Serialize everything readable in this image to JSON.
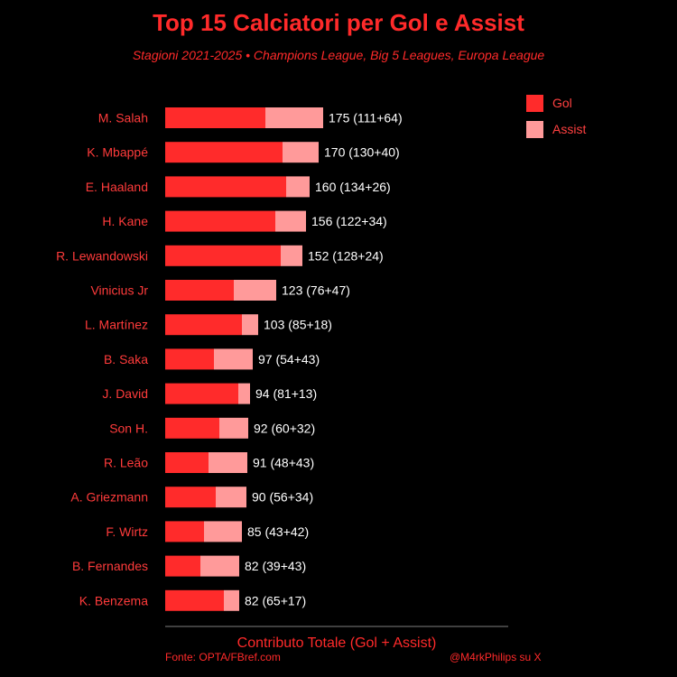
{
  "colors": {
    "gol": "#ff2b2b",
    "assist": "#ff9a9a",
    "label": "#ff3b3b",
    "value": "#ffffff",
    "axis": "#555555"
  },
  "chart_data": {
    "type": "bar",
    "orientation": "horizontal",
    "stacked": true,
    "title": "Top 15 Calciatori per Gol e Assist",
    "subtitle": "Stagioni 2021-2025 • Champions League, Big 5 Leagues, Europa League",
    "xlabel": "Contributo Totale (Gol + Assist)",
    "ylabel": "",
    "xlim": [
      0,
      380
    ],
    "legend_position": "top-right",
    "categories": [
      "M. Salah",
      "K. Mbappé",
      "E. Haaland",
      "H. Kane",
      "R. Lewandowski",
      "Vinicius Jr",
      "L. Martínez",
      "B. Saka",
      "J. David",
      "Son H.",
      "R. Leão",
      "A. Griezmann",
      "F. Wirtz",
      "B. Fernandes",
      "K. Benzema"
    ],
    "series": [
      {
        "name": "Gol",
        "values": [
          111,
          130,
          134,
          122,
          128,
          76,
          85,
          54,
          81,
          60,
          48,
          56,
          43,
          39,
          65
        ]
      },
      {
        "name": "Assist",
        "values": [
          64,
          40,
          26,
          34,
          24,
          47,
          18,
          43,
          13,
          32,
          43,
          34,
          42,
          43,
          17
        ]
      }
    ],
    "value_labels": [
      "175 (111+64)",
      "170 (130+40)",
      "160 (134+26)",
      "156 (122+34)",
      "152 (128+24)",
      "123 (76+47)",
      "103 (85+18)",
      "97 (54+43)",
      "94 (81+13)",
      "92 (60+32)",
      "91 (48+43)",
      "90 (56+34)",
      "85 (43+42)",
      "82 (39+43)",
      "82 (65+17)"
    ]
  },
  "footer": {
    "source": "Fonte: OPTA/FBref.com",
    "credit": "@M4rkPhilips su X"
  }
}
